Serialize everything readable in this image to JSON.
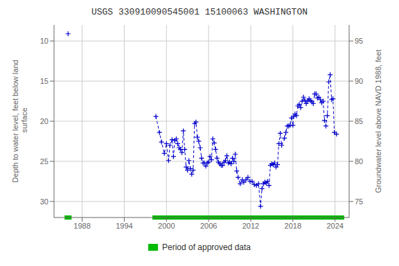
{
  "chart_data": {
    "type": "line",
    "title": "USGS 330910090545001 15100063 WASHINGTON",
    "y_label": "Depth to water level, feet below land\n surface",
    "y2_label": "Groundwater level above NAVD 1988, feet",
    "xlim": [
      1984,
      2026
    ],
    "xticks": [
      1988,
      1994,
      2000,
      2006,
      2012,
      2018,
      2024
    ],
    "ylim": [
      32,
      8
    ],
    "yticks": [
      10,
      15,
      20,
      25,
      30
    ],
    "y2lim": [
      73,
      97
    ],
    "y2ticks": [
      75,
      80,
      85,
      90,
      95
    ],
    "grid": true,
    "legend": "bottom",
    "series": [
      {
        "type": "line",
        "color": "#0000cc",
        "line_style": "dashed",
        "marker": "plus",
        "x": [
          1998.5,
          1999.0,
          1999.3,
          1999.7,
          2000.0,
          2000.3,
          2000.5,
          2000.8,
          2001.0,
          2001.2,
          2001.4,
          2001.6,
          2001.8,
          2002.0,
          2002.2,
          2002.4,
          2002.6,
          2002.8,
          2003.0,
          2003.2,
          2003.4,
          2003.6,
          2003.8,
          2004.0,
          2004.2,
          2004.4,
          2004.6,
          2004.8,
          2005.0,
          2005.2,
          2005.4,
          2005.6,
          2005.8,
          2006.0,
          2006.2,
          2006.4,
          2006.6,
          2006.8,
          2007.0,
          2007.2,
          2007.4,
          2007.6,
          2007.8,
          2008.0,
          2008.2,
          2008.4,
          2008.6,
          2008.8,
          2009.0,
          2009.2,
          2009.4,
          2009.6,
          2009.8,
          2010.0,
          2010.2,
          2010.5,
          2010.8,
          2011.0,
          2011.3,
          2011.6,
          2011.9,
          2012.2,
          2012.5,
          2012.8,
          2013.1,
          2013.4,
          2013.6,
          2013.8,
          2014.0,
          2014.2,
          2014.4,
          2014.6,
          2014.8,
          2015.0,
          2015.2,
          2015.4,
          2015.6,
          2015.8,
          2016.0,
          2016.2,
          2016.4,
          2016.8,
          2017.0,
          2017.2,
          2017.4,
          2017.6,
          2017.8,
          2018.0,
          2018.1,
          2018.3,
          2018.5,
          2018.7,
          2018.9,
          2019.1,
          2019.3,
          2019.5,
          2019.7,
          2019.9,
          2020.1,
          2020.3,
          2020.5,
          2020.7,
          2020.9,
          2021.1,
          2021.3,
          2021.5,
          2021.7,
          2021.9,
          2022.1,
          2022.3,
          2022.5,
          2022.7,
          2022.9,
          2023.1,
          2023.3,
          2023.5,
          2023.7,
          2023.9,
          2024.2
        ],
        "values": [
          19.4,
          21.4,
          22.6,
          24.0,
          22.8,
          24.9,
          23.0,
          22.3,
          24.4,
          22.4,
          22.2,
          22.8,
          23.3,
          23.5,
          23.9,
          21.2,
          23.5,
          25.7,
          26.1,
          24.9,
          25.9,
          26.6,
          26.1,
          20.3,
          20.1,
          22.0,
          22.5,
          23.3,
          24.6,
          25.2,
          25.2,
          25.6,
          25.2,
          25.1,
          24.4,
          24.8,
          22.2,
          22.7,
          23.5,
          24.6,
          25.1,
          25.3,
          25.5,
          25.5,
          25.1,
          24.9,
          24.3,
          25.2,
          25.1,
          25.3,
          24.6,
          25.0,
          24.1,
          26.2,
          27.0,
          27.8,
          27.3,
          27.6,
          27.3,
          27.0,
          27.5,
          27.5,
          27.9,
          28.0,
          27.8,
          30.6,
          28.4,
          27.8,
          27.6,
          27.7,
          27.5,
          28.0,
          25.5,
          25.3,
          25.4,
          25.2,
          25.7,
          25.4,
          22.8,
          21.5,
          23.0,
          22.1,
          21.4,
          20.6,
          20.6,
          20.5,
          19.6,
          20.5,
          19.4,
          19.1,
          19.3,
          18.1,
          17.9,
          18.3,
          17.5,
          17.0,
          17.4,
          17.8,
          17.5,
          17.2,
          17.4,
          17.6,
          17.8,
          16.6,
          16.6,
          17.1,
          17.0,
          17.3,
          17.7,
          17.5,
          19.9,
          20.6,
          19.3,
          15.1,
          14.2,
          17.3,
          17.2,
          21.4,
          21.6
        ]
      },
      {
        "type": "scatter",
        "color": "#0000cc",
        "marker": "plus",
        "x": [
          1986.0
        ],
        "values": [
          9.1
        ]
      }
    ],
    "approved_periods": {
      "name": "Period of approved data",
      "color": "#00bb00",
      "ranges": [
        [
          1985.5,
          1986.5
        ],
        [
          1998.0,
          2025.3
        ]
      ]
    }
  }
}
